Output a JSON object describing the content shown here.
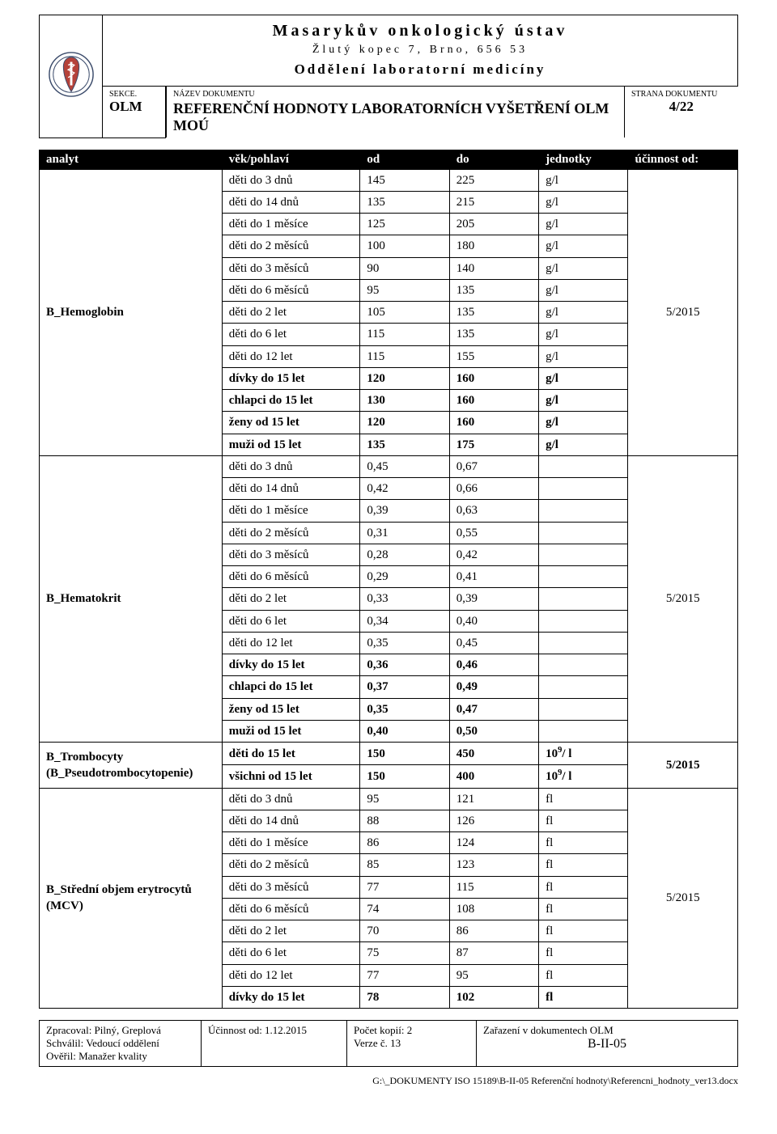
{
  "header": {
    "org_name": "Masarykův onkologický ústav",
    "org_addr": "Žlutý kopec 7, Brno, 656 53",
    "org_dept": "Oddělení laboratorní medicíny",
    "sekce_label": "SEKCE.",
    "sekce_val": "OLM",
    "doc_label": "NÁZEV DOKUMENTU",
    "doc_title": "REFERENČNÍ HODNOTY LABORATORNÍCH VYŠETŘENÍ OLM MOÚ",
    "page_label": "STRANA DOKUMENTU",
    "page_val": "4/22",
    "logo_outer_color": "#b5423a",
    "logo_inner_color": "#ffffff",
    "logo_stroke": "#3a4a6a"
  },
  "columns": {
    "analyt": "analyt",
    "age": "věk/pohlaví",
    "od": "od",
    "do": "do",
    "unit": "jednotky",
    "eff": "účinnost od:"
  },
  "groups": [
    {
      "analyte": "B_Hemoglobin",
      "effective": "5/2015",
      "rows": [
        {
          "age": "děti do 3 dnů",
          "od": "145",
          "do": "225",
          "unit": "g/l",
          "bold": false
        },
        {
          "age": "děti do 14 dnů",
          "od": "135",
          "do": "215",
          "unit": "g/l",
          "bold": false
        },
        {
          "age": "děti do 1 měsíce",
          "od": "125",
          "do": "205",
          "unit": "g/l",
          "bold": false
        },
        {
          "age": "děti do 2 měsíců",
          "od": "100",
          "do": "180",
          "unit": "g/l",
          "bold": false
        },
        {
          "age": "děti do 3 měsíců",
          "od": "90",
          "do": "140",
          "unit": "g/l",
          "bold": false
        },
        {
          "age": "děti do 6 měsíců",
          "od": "95",
          "do": "135",
          "unit": "g/l",
          "bold": false
        },
        {
          "age": "děti do 2 let",
          "od": "105",
          "do": "135",
          "unit": "g/l",
          "bold": false
        },
        {
          "age": "děti do 6 let",
          "od": "115",
          "do": "135",
          "unit": "g/l",
          "bold": false
        },
        {
          "age": "děti do 12 let",
          "od": "115",
          "do": "155",
          "unit": "g/l",
          "bold": false
        },
        {
          "age": "dívky do 15 let",
          "od": "120",
          "do": "160",
          "unit": "g/l",
          "bold": true
        },
        {
          "age": "chlapci do 15 let",
          "od": "130",
          "do": "160",
          "unit": "g/l",
          "bold": true
        },
        {
          "age": "ženy od 15 let",
          "od": "120",
          "do": "160",
          "unit": "g/l",
          "bold": true
        },
        {
          "age": "muži od 15 let",
          "od": "135",
          "do": "175",
          "unit": "g/l",
          "bold": true
        }
      ]
    },
    {
      "analyte": "B_Hematokrit",
      "effective": "5/2015",
      "rows": [
        {
          "age": "děti do 3 dnů",
          "od": "0,45",
          "do": "0,67",
          "unit": "",
          "bold": false
        },
        {
          "age": "děti do 14 dnů",
          "od": "0,42",
          "do": "0,66",
          "unit": "",
          "bold": false
        },
        {
          "age": "děti do 1 měsíce",
          "od": "0,39",
          "do": "0,63",
          "unit": "",
          "bold": false
        },
        {
          "age": "děti do 2 měsíců",
          "od": "0,31",
          "do": "0,55",
          "unit": "",
          "bold": false
        },
        {
          "age": "děti do 3 měsíců",
          "od": "0,28",
          "do": "0,42",
          "unit": "",
          "bold": false
        },
        {
          "age": "děti do 6 měsíců",
          "od": "0,29",
          "do": "0,41",
          "unit": "",
          "bold": false
        },
        {
          "age": "děti do 2 let",
          "od": "0,33",
          "do": "0,39",
          "unit": "",
          "bold": false
        },
        {
          "age": "děti do 6 let",
          "od": "0,34",
          "do": "0,40",
          "unit": "",
          "bold": false
        },
        {
          "age": "děti do 12 let",
          "od": "0,35",
          "do": "0,45",
          "unit": "",
          "bold": false
        },
        {
          "age": "dívky do 15 let",
          "od": "0,36",
          "do": "0,46",
          "unit": "",
          "bold": true
        },
        {
          "age": "chlapci do 15 let",
          "od": "0,37",
          "do": "0,49",
          "unit": "",
          "bold": true
        },
        {
          "age": "ženy od 15 let",
          "od": "0,35",
          "do": "0,47",
          "unit": "",
          "bold": true
        },
        {
          "age": "muži od 15 let",
          "od": "0,40",
          "do": "0,50",
          "unit": "",
          "bold": true
        }
      ]
    },
    {
      "analyte": "B_Trombocyty (B_Pseudotrombocytopenie)",
      "effective": "5/2015",
      "rows": [
        {
          "age": "děti do 15 let",
          "od": "150",
          "do": "450",
          "unit": "10<sup>9</sup>/ l",
          "bold": true
        },
        {
          "age": "všichni od 15 let",
          "od": "150",
          "do": "400",
          "unit": "10<sup>9</sup>/ l",
          "bold": true
        }
      ]
    },
    {
      "analyte": "B_Střední objem erytrocytů (MCV)",
      "effective": "5/2015",
      "rows": [
        {
          "age": "děti do 3 dnů",
          "od": "95",
          "do": "121",
          "unit": "fl",
          "bold": false
        },
        {
          "age": "děti do 14 dnů",
          "od": "88",
          "do": "126",
          "unit": "fl",
          "bold": false
        },
        {
          "age": "děti do 1 měsíce",
          "od": "86",
          "do": "124",
          "unit": "fl",
          "bold": false
        },
        {
          "age": "děti do 2 měsíců",
          "od": "85",
          "do": "123",
          "unit": "fl",
          "bold": false
        },
        {
          "age": "děti do 3 měsíců",
          "od": "77",
          "do": "115",
          "unit": "fl",
          "bold": false
        },
        {
          "age": "děti do 6 měsíců",
          "od": "74",
          "do": "108",
          "unit": "fl",
          "bold": false
        },
        {
          "age": "děti do 2 let",
          "od": "70",
          "do": "86",
          "unit": "fl",
          "bold": false
        },
        {
          "age": "děti do 6 let",
          "od": "75",
          "do": "87",
          "unit": "fl",
          "bold": false
        },
        {
          "age": "děti do 12 let",
          "od": "77",
          "do": "95",
          "unit": "fl",
          "bold": false
        },
        {
          "age": "dívky do 15 let",
          "od": "78",
          "do": "102",
          "unit": "fl",
          "bold": true
        }
      ]
    }
  ],
  "footer": {
    "c1_l1": "Zpracoval: Pilný, Greplová",
    "c1_l2": "Schválil: Vedoucí oddělení",
    "c1_l3": "Ověřil: Manažer kvality",
    "c2": "Účinnost od: 1.12.2015",
    "c3_l1": "Počet kopií: 2",
    "c3_l2": "Verze č. 13",
    "c4_label": "Zařazení v dokumentech OLM",
    "c4_val": "B-II-05",
    "path": "G:\\_DOKUMENTY  ISO 15189\\B-II-05 Referenční hodnoty\\Referencni_hodnoty_ver13.docx"
  }
}
